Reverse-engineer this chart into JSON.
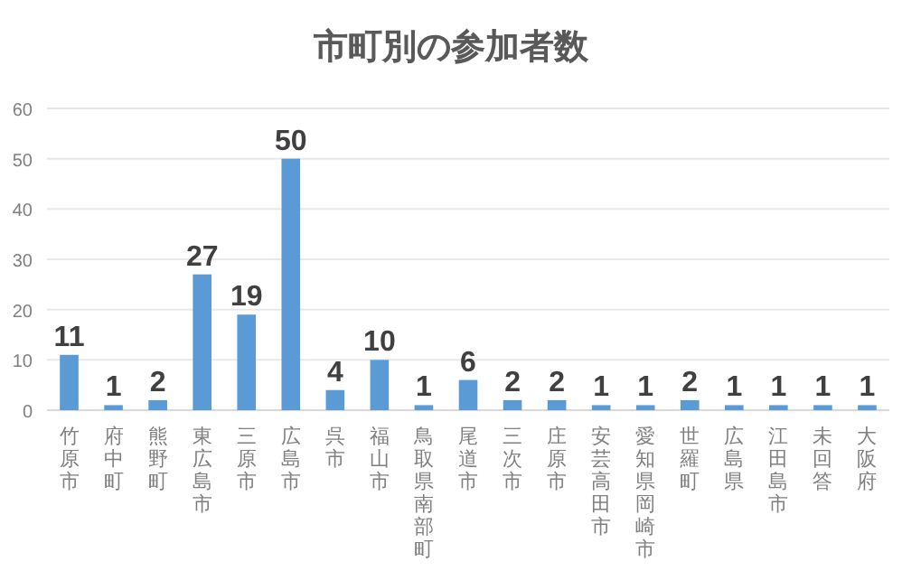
{
  "chart_data": {
    "type": "bar",
    "title": "市町別の参加者数",
    "categories": [
      "竹原市",
      "府中町",
      "熊野町",
      "東広島市",
      "三原市",
      "広島市",
      "呉市",
      "福山市",
      "鳥取県南部町",
      "尾道市",
      "三次市",
      "庄原市",
      "安芸高田市",
      "愛知県岡崎市",
      "世羅町",
      "広島県",
      "江田島市",
      "未回答",
      "大阪府"
    ],
    "values": [
      11,
      1,
      2,
      27,
      19,
      50,
      4,
      10,
      1,
      6,
      2,
      2,
      1,
      1,
      2,
      1,
      1,
      1,
      1
    ],
    "color": "#5b9bd5",
    "ylim": [
      0,
      60
    ],
    "yticks": [
      0,
      10,
      20,
      30,
      40,
      50,
      60
    ],
    "grid": "y",
    "data_labels": true
  }
}
